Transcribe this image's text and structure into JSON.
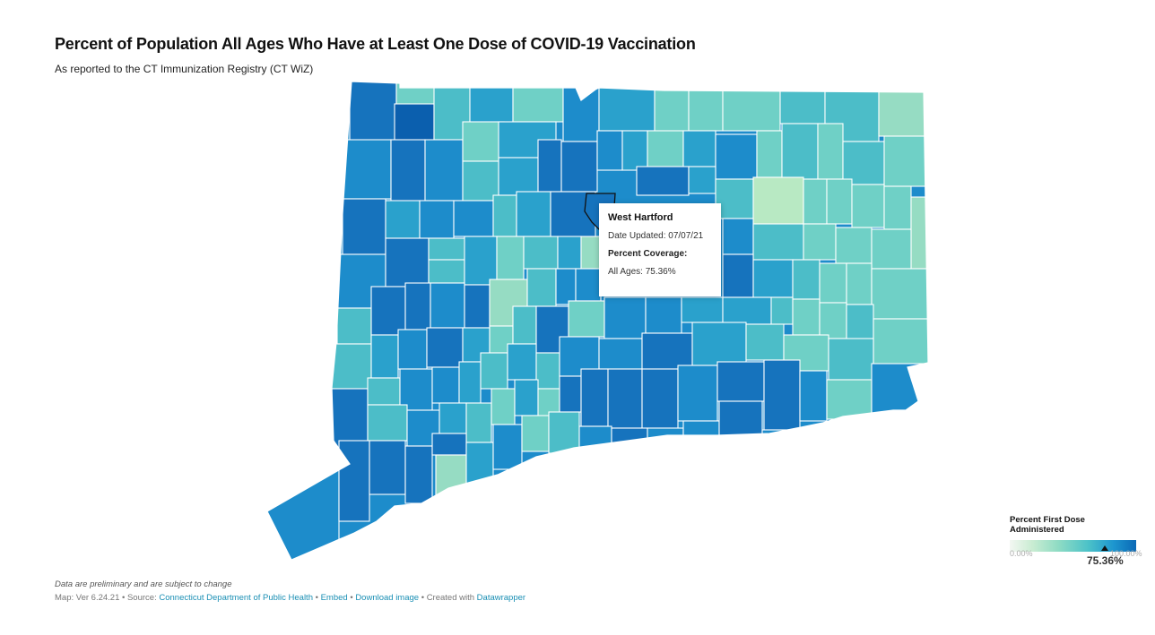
{
  "header": {
    "title": "Percent of Population All Ages Who Have at Least One Dose of COVID-19 Vaccination",
    "subtitle": "As reported to the CT Immunization Registry (CT WiZ)"
  },
  "tooltip": {
    "town": "West Hartford",
    "date_updated": "Date Updated: 07/07/21",
    "coverage_label": "Percent Coverage:",
    "all_ages": "All Ages: 75.36%"
  },
  "legend": {
    "title": "Percent First Dose Administered",
    "min": "0.00%",
    "max": "100.00%",
    "highlight_value": "75.36%",
    "highlight_fraction": 0.7536
  },
  "colors": {
    "darkest": "#0b5fae",
    "dark": "#1673bd",
    "mid_dark": "#1d8ccb",
    "mid": "#2aa1cc",
    "teal": "#4cbdc8",
    "light_teal": "#6fd0c6",
    "mint": "#96dcc3",
    "pale": "#b8e9c3"
  },
  "notes": "Data are preliminary and are subject to change",
  "footer": {
    "map_ver": "Map: Ver 6.24.21",
    "source_prefix": "Source:",
    "source": "Connecticut Department of Public Health",
    "embed": "Embed",
    "download": "Download image",
    "created": "Created with",
    "datawrapper": "Datawrapper"
  }
}
